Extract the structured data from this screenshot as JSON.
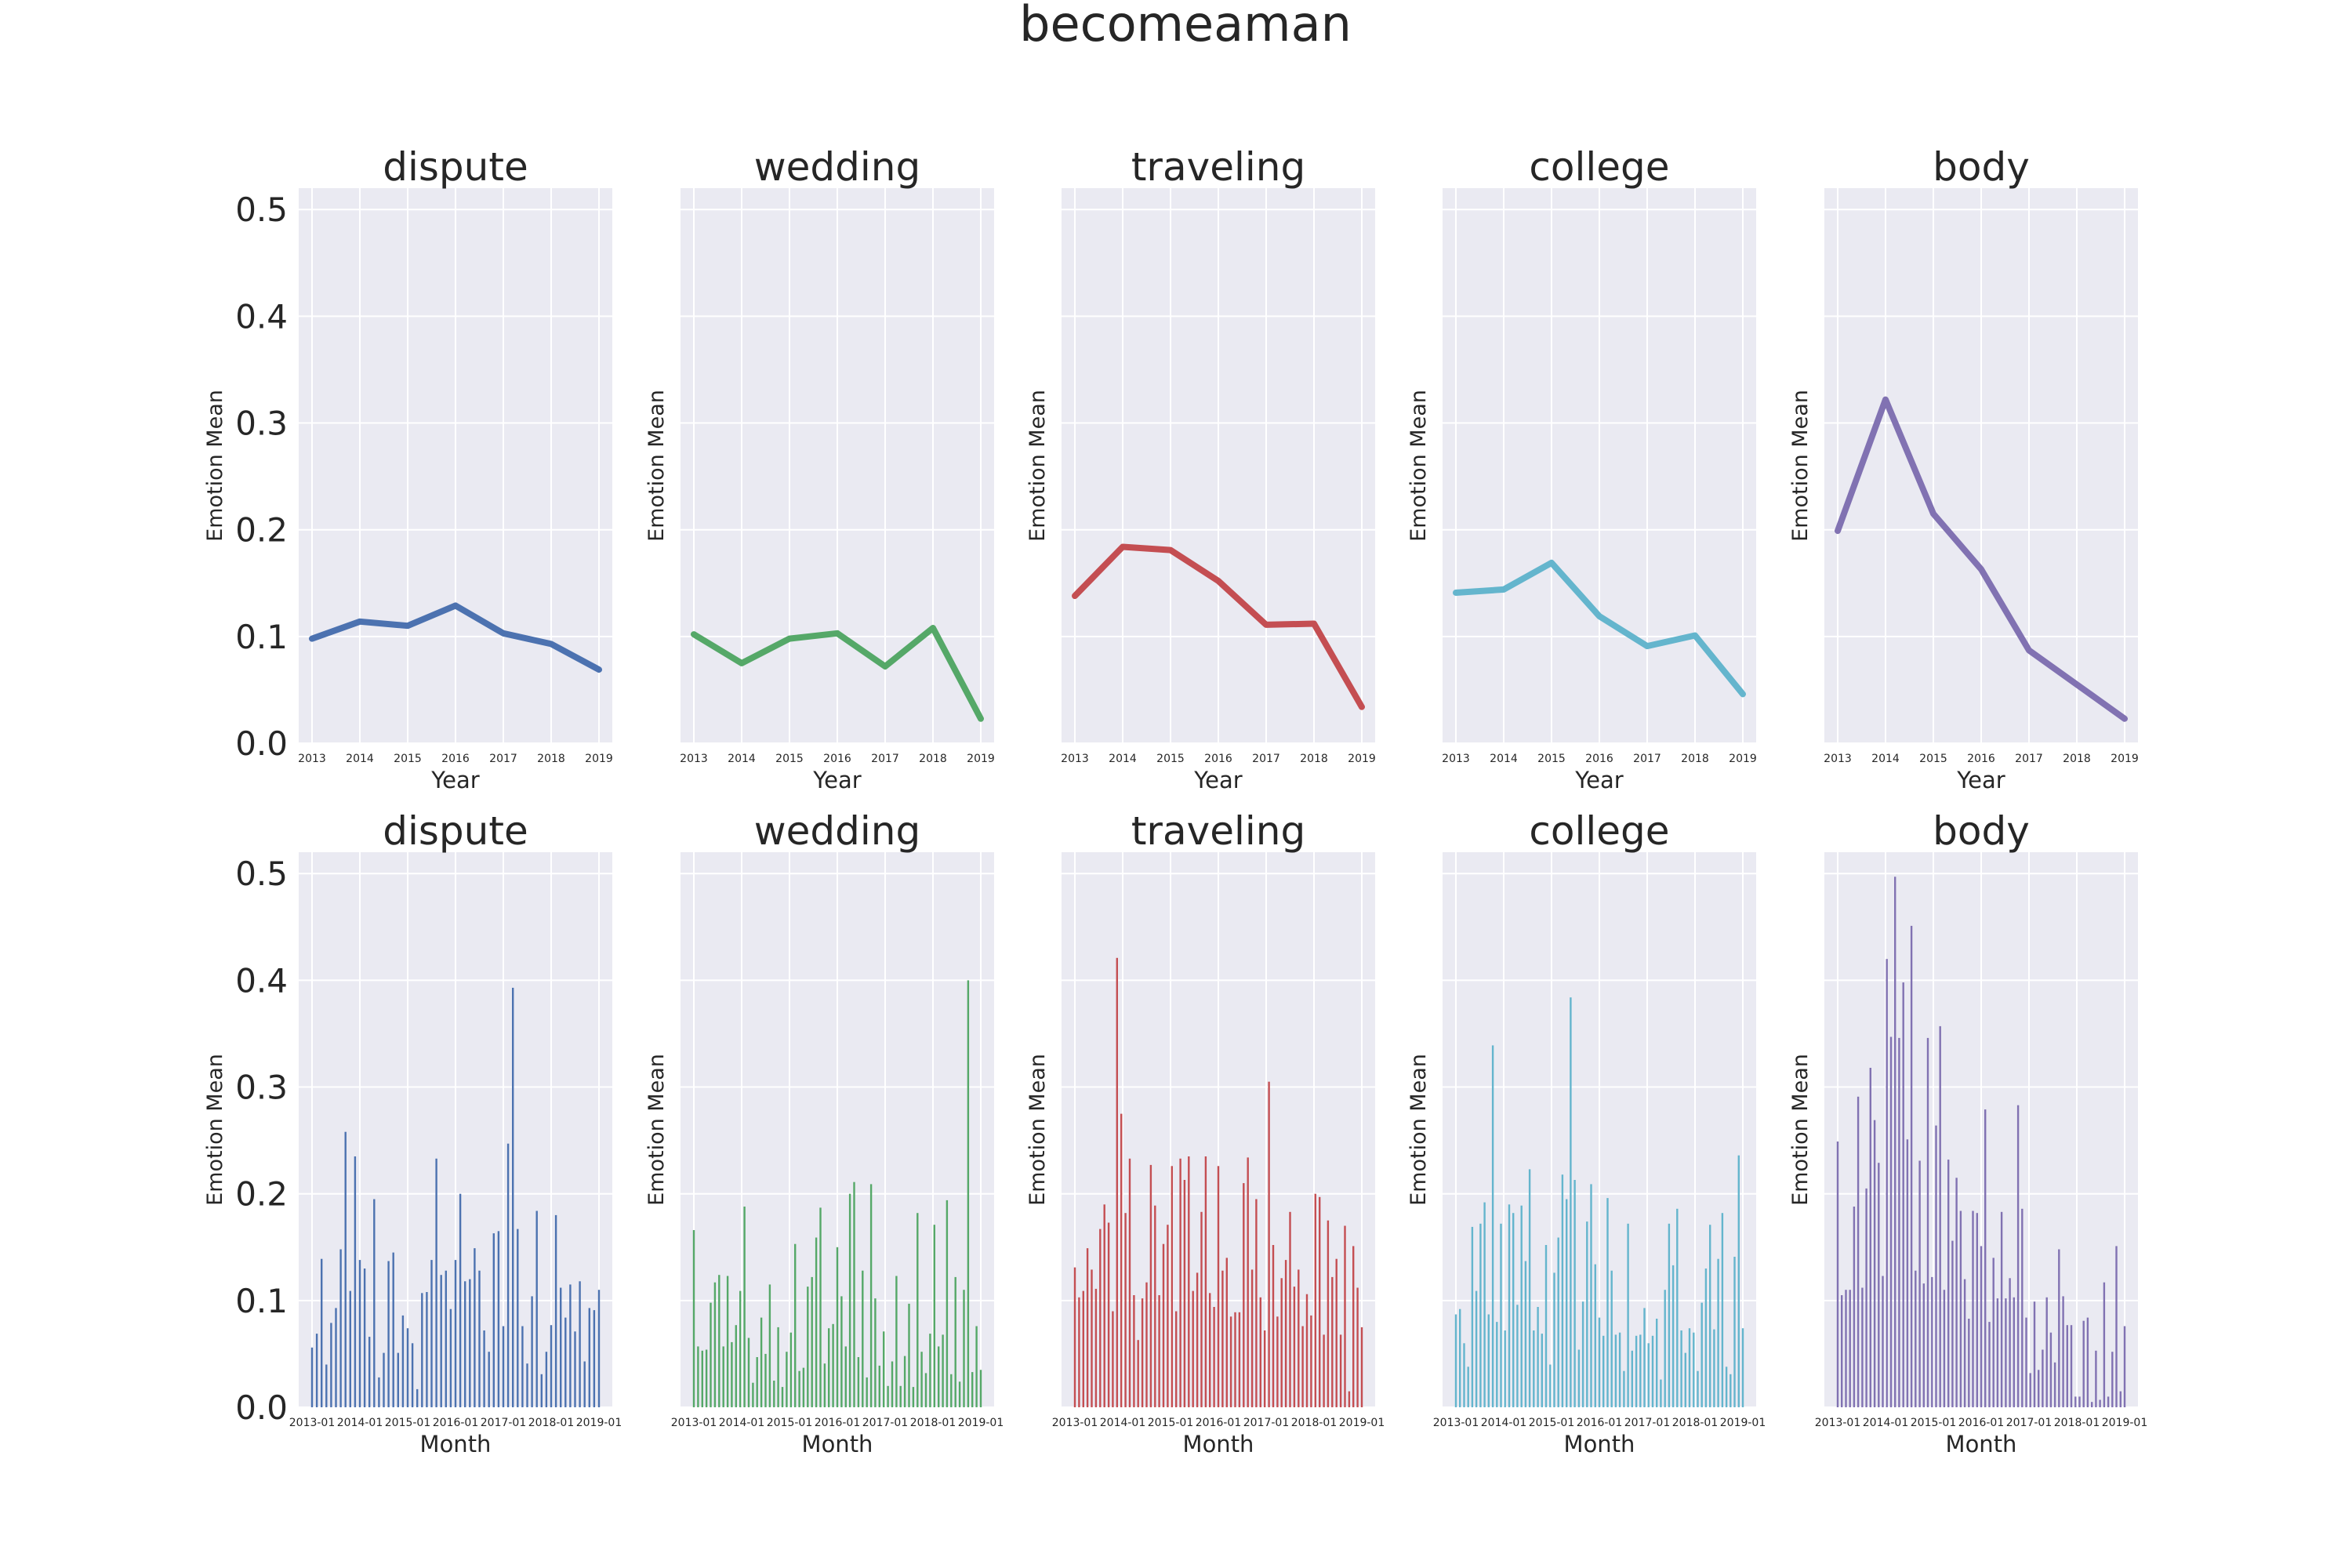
{
  "figure": {
    "title": "becomeaman"
  },
  "colors": {
    "dispute": "#4c72b0",
    "wedding": "#55a868",
    "traveling": "#c44e52",
    "college": "#64b5cd",
    "body": "#8172b2",
    "panel_bg": "#eaeaf2",
    "grid": "#ffffff",
    "text": "#262626"
  },
  "chart_data": [
    {
      "type": "line",
      "title": "dispute",
      "color_key": "dispute",
      "xlabel": "Year",
      "ylabel": "Emotion Mean",
      "x": [
        "2013",
        "2014",
        "2015",
        "2016",
        "2017",
        "2018",
        "2019"
      ],
      "values": [
        0.098,
        0.114,
        0.11,
        0.129,
        0.103,
        0.093,
        0.069
      ],
      "ylim": [
        0,
        0.52
      ],
      "yticks": [
        "0.0",
        "0.1",
        "0.2",
        "0.3",
        "0.4",
        "0.5"
      ],
      "grid": true
    },
    {
      "type": "line",
      "title": "wedding",
      "color_key": "wedding",
      "xlabel": "Year",
      "ylabel": "Emotion Mean",
      "x": [
        "2013",
        "2014",
        "2015",
        "2016",
        "2017",
        "2018",
        "2019"
      ],
      "values": [
        0.102,
        0.075,
        0.098,
        0.103,
        0.072,
        0.108,
        0.023
      ],
      "ylim": [
        0,
        0.52
      ],
      "grid": true
    },
    {
      "type": "line",
      "title": "traveling",
      "color_key": "traveling",
      "xlabel": "Year",
      "ylabel": "Emotion Mean",
      "x": [
        "2013",
        "2014",
        "2015",
        "2016",
        "2017",
        "2018",
        "2019"
      ],
      "values": [
        0.138,
        0.184,
        0.181,
        0.152,
        0.111,
        0.112,
        0.034
      ],
      "ylim": [
        0,
        0.52
      ],
      "grid": true
    },
    {
      "type": "line",
      "title": "college",
      "color_key": "college",
      "xlabel": "Year",
      "ylabel": "Emotion Mean",
      "x": [
        "2013",
        "2014",
        "2015",
        "2016",
        "2017",
        "2018",
        "2019"
      ],
      "values": [
        0.141,
        0.144,
        0.169,
        0.119,
        0.091,
        0.101,
        0.046
      ],
      "ylim": [
        0,
        0.52
      ],
      "grid": true
    },
    {
      "type": "line",
      "title": "body",
      "color_key": "body",
      "xlabel": "Year",
      "ylabel": "Emotion Mean",
      "x": [
        "2013",
        "2014",
        "2015",
        "2016",
        "2017",
        "2018",
        "2019"
      ],
      "values": [
        0.199,
        0.322,
        0.215,
        0.163,
        0.087,
        0.055,
        0.023
      ],
      "ylim": [
        0,
        0.52
      ],
      "grid": true
    },
    {
      "type": "bar",
      "title": "dispute",
      "color_key": "dispute",
      "xlabel": "Month",
      "ylabel": "Emotion Mean",
      "xticks": [
        "2013-01",
        "2014-01",
        "2015-01",
        "2016-01",
        "2017-01",
        "2018-01",
        "2019-01"
      ],
      "values": [
        0.056,
        0.069,
        0.139,
        0.04,
        0.079,
        0.093,
        0.148,
        0.258,
        0.109,
        0.235,
        0.138,
        0.13,
        0.066,
        0.195,
        0.028,
        0.051,
        0.137,
        0.145,
        0.051,
        0.086,
        0.074,
        0.06,
        0.017,
        0.107,
        0.108,
        0.138,
        0.233,
        0.124,
        0.128,
        0.092,
        0.138,
        0.2,
        0.118,
        0.12,
        0.149,
        0.128,
        0.072,
        0.052,
        0.163,
        0.165,
        0.076,
        0.247,
        0.393,
        0.167,
        0.076,
        0.041,
        0.104,
        0.184,
        0.031,
        0.052,
        0.077,
        0.18,
        0.112,
        0.084,
        0.115,
        0.071,
        0.118,
        0.043,
        0.093,
        0.091,
        0.11
      ],
      "ylim": [
        0,
        0.52
      ],
      "yticks": [
        "0.0",
        "0.1",
        "0.2",
        "0.3",
        "0.4",
        "0.5"
      ],
      "grid": true
    },
    {
      "type": "bar",
      "title": "wedding",
      "color_key": "wedding",
      "xlabel": "Month",
      "ylabel": "Emotion Mean",
      "xticks": [
        "2013-01",
        "2014-01",
        "2015-01",
        "2016-01",
        "2017-01",
        "2018-01",
        "2019-01"
      ],
      "values": [
        0.166,
        0.057,
        0.053,
        0.054,
        0.098,
        0.117,
        0.124,
        0.057,
        0.123,
        0.061,
        0.077,
        0.109,
        0.188,
        0.065,
        0.023,
        0.047,
        0.084,
        0.05,
        0.115,
        0.025,
        0.075,
        0.019,
        0.052,
        0.07,
        0.153,
        0.034,
        0.037,
        0.113,
        0.122,
        0.159,
        0.187,
        0.041,
        0.074,
        0.078,
        0.15,
        0.104,
        0.057,
        0.2,
        0.211,
        0.047,
        0.128,
        0.028,
        0.209,
        0.102,
        0.039,
        0.071,
        0.02,
        0.043,
        0.123,
        0.02,
        0.048,
        0.097,
        0.019,
        0.182,
        0.052,
        0.032,
        0.069,
        0.171,
        0.057,
        0.068,
        0.194,
        0.031,
        0.122,
        0.024,
        0.11,
        0.4,
        0.033,
        0.076,
        0.035
      ],
      "ylim": [
        0,
        0.52
      ],
      "grid": true
    },
    {
      "type": "bar",
      "title": "traveling",
      "color_key": "traveling",
      "xlabel": "Month",
      "ylabel": "Emotion Mean",
      "xticks": [
        "2013-01",
        "2014-01",
        "2015-01",
        "2016-01",
        "2017-01",
        "2018-01",
        "2019-01"
      ],
      "values": [
        0.131,
        0.103,
        0.109,
        0.149,
        0.129,
        0.111,
        0.167,
        0.19,
        0.173,
        0.09,
        0.421,
        0.275,
        0.182,
        0.233,
        0.105,
        0.063,
        0.102,
        0.117,
        0.227,
        0.189,
        0.105,
        0.153,
        0.171,
        0.226,
        0.09,
        0.233,
        0.213,
        0.235,
        0.109,
        0.126,
        0.183,
        0.235,
        0.107,
        0.094,
        0.226,
        0.128,
        0.14,
        0.085,
        0.089,
        0.089,
        0.21,
        0.234,
        0.129,
        0.195,
        0.103,
        0.072,
        0.305,
        0.152,
        0.085,
        0.121,
        0.138,
        0.183,
        0.113,
        0.129,
        0.076,
        0.106,
        0.086,
        0.2,
        0.197,
        0.068,
        0.175,
        0.122,
        0.139,
        0.068,
        0.17,
        0.015,
        0.151,
        0.112,
        0.075
      ]
    },
    {
      "type": "bar",
      "title": "college",
      "color_key": "college",
      "xlabel": "Month",
      "ylabel": "Emotion Mean",
      "xticks": [
        "2013-01",
        "2014-01",
        "2015-01",
        "2016-01",
        "2017-01",
        "2018-01",
        "2019-01"
      ],
      "values": [
        0.087,
        0.092,
        0.06,
        0.038,
        0.169,
        0.109,
        0.172,
        0.192,
        0.087,
        0.339,
        0.08,
        0.172,
        0.072,
        0.19,
        0.182,
        0.096,
        0.189,
        0.137,
        0.223,
        0.072,
        0.094,
        0.069,
        0.152,
        0.04,
        0.126,
        0.159,
        0.218,
        0.195,
        0.384,
        0.213,
        0.054,
        0.099,
        0.174,
        0.209,
        0.134,
        0.084,
        0.067,
        0.196,
        0.128,
        0.068,
        0.07,
        0.034,
        0.172,
        0.053,
        0.067,
        0.068,
        0.093,
        0.06,
        0.067,
        0.083,
        0.026,
        0.11,
        0.172,
        0.133,
        0.186,
        0.072,
        0.051,
        0.074,
        0.07,
        0.034,
        0.098,
        0.13,
        0.171,
        0.073,
        0.139,
        0.182,
        0.038,
        0.031,
        0.141,
        0.236,
        0.074
      ]
    },
    {
      "type": "bar",
      "title": "body",
      "color_key": "body",
      "xlabel": "Month",
      "ylabel": "Emotion Mean",
      "xticks": [
        "2013-01",
        "2014-01",
        "2015-01",
        "2016-01",
        "2017-01",
        "2018-01",
        "2019-01"
      ],
      "values": [
        0.249,
        0.105,
        0.11,
        0.11,
        0.188,
        0.291,
        0.112,
        0.205,
        0.318,
        0.269,
        0.229,
        0.123,
        0.42,
        0.347,
        0.497,
        0.346,
        0.398,
        0.251,
        0.451,
        0.128,
        0.231,
        0.116,
        0.346,
        0.122,
        0.264,
        0.357,
        0.11,
        0.232,
        0.156,
        0.215,
        0.184,
        0.12,
        0.083,
        0.184,
        0.182,
        0.151,
        0.279,
        0.08,
        0.14,
        0.102,
        0.183,
        0.102,
        0.121,
        0.103,
        0.283,
        0.186,
        0.084,
        0.032,
        0.099,
        0.035,
        0.054,
        0.103,
        0.07,
        0.042,
        0.148,
        0.104,
        0.077,
        0.077,
        0.01,
        0.01,
        0.081,
        0.084,
        0.005,
        0.053,
        0.007,
        0.117,
        0.01,
        0.052,
        0.151,
        0.015,
        0.076
      ]
    }
  ]
}
